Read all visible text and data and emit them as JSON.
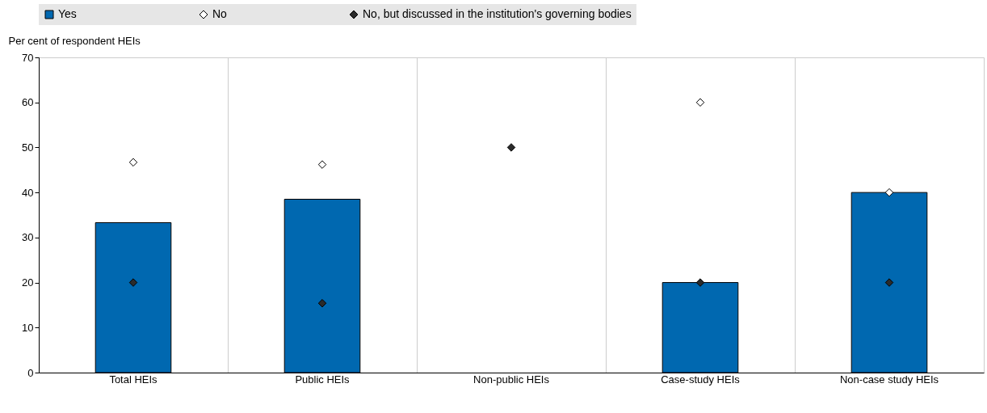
{
  "chart_data": {
    "type": "bar",
    "ylabel": "Per cent of respondent HEIs",
    "categories": [
      "Total HEIs",
      "Public HEIs",
      "Non-public HEIs",
      "Case-study HEIs",
      "Non-case study HEIs"
    ],
    "series": [
      {
        "name": "Yes",
        "color": "#0068b0",
        "values": [
          33.3,
          38.5,
          null,
          20,
          40
        ]
      },
      {
        "name": "No",
        "type": "scatter",
        "marker": "diamond",
        "color": "#ffffff",
        "values": [
          46.7,
          46.2,
          null,
          60,
          40
        ]
      },
      {
        "name": "No, but discussed in the institution's governing bodies",
        "type": "scatter",
        "marker": "diamond",
        "color": "#2b2b2b",
        "values": [
          20,
          15.4,
          50,
          20,
          20
        ]
      }
    ],
    "ylim": [
      0,
      70
    ],
    "yticks": [
      0,
      10,
      20,
      30,
      40,
      50,
      60,
      70
    ],
    "grid": "x",
    "legend": "top"
  }
}
